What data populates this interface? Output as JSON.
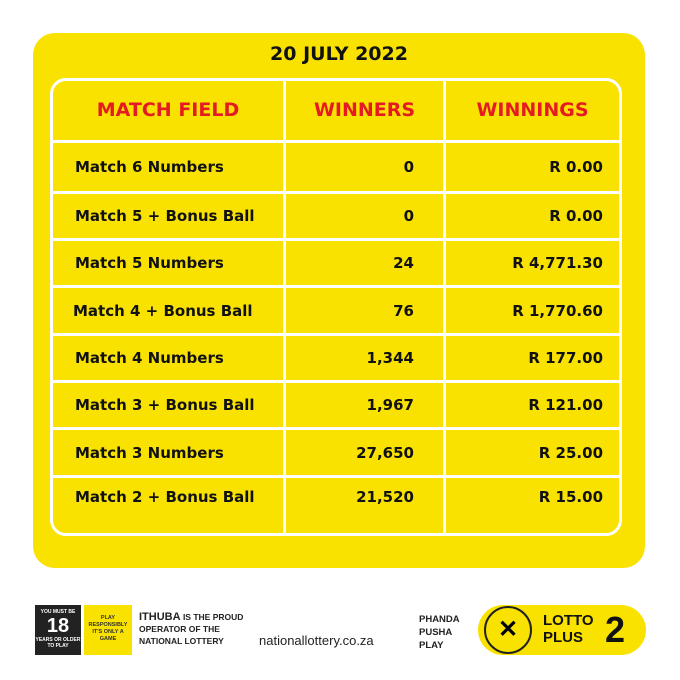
{
  "date": "20 JULY 2022",
  "headers": [
    "MATCH FIELD",
    "WINNERS",
    "WINNINGS"
  ],
  "rows": [
    {
      "field": "Match 6 Numbers",
      "winners": "0",
      "winnings": "R 0.00"
    },
    {
      "field": "Match 5 + Bonus Ball",
      "winners": "0",
      "winnings": "R 0.00"
    },
    {
      "field": "Match 5 Numbers",
      "winners": "24",
      "winnings": "R 4,771.30"
    },
    {
      "field": "Match 4  + Bonus Ball",
      "winners": "76",
      "winnings": "R 1,770.60"
    },
    {
      "field": "Match 4 Numbers",
      "winners": "1,344",
      "winnings": "R 177.00"
    },
    {
      "field": "Match 3 + Bonus Ball",
      "winners": "1,967",
      "winnings": "R 121.00"
    },
    {
      "field": "Match 3 Numbers",
      "winners": "27,650",
      "winnings": "R 25.00"
    },
    {
      "field": "Match 2 + Bonus Ball",
      "winners": "21,520",
      "winnings": "R 15.00"
    }
  ],
  "footer": {
    "age_top": "YOU MUST BE",
    "age": "18",
    "age_bottom": "YEARS OR OLDER TO PLAY",
    "play_responsibly": "PLAY RESPONSIBLY IT'S ONLY A GAME",
    "ithuba_brand": "ITHUBA",
    "ithuba_text": "IS THE PROUD OPERATOR OF THE NATIONAL LOTTERY",
    "url": "nationallottery.co.za",
    "slogan": [
      "PHANDA",
      "PUSHA",
      "PLAY"
    ],
    "logo_text": "NATIONAL LOTTERY",
    "game_line1": "LOTTO",
    "game_line2": "PLUS",
    "game_number": "2"
  },
  "colors": {
    "card": "#f9e200",
    "header_text": "#e41b23",
    "lines": "#ffffff"
  }
}
